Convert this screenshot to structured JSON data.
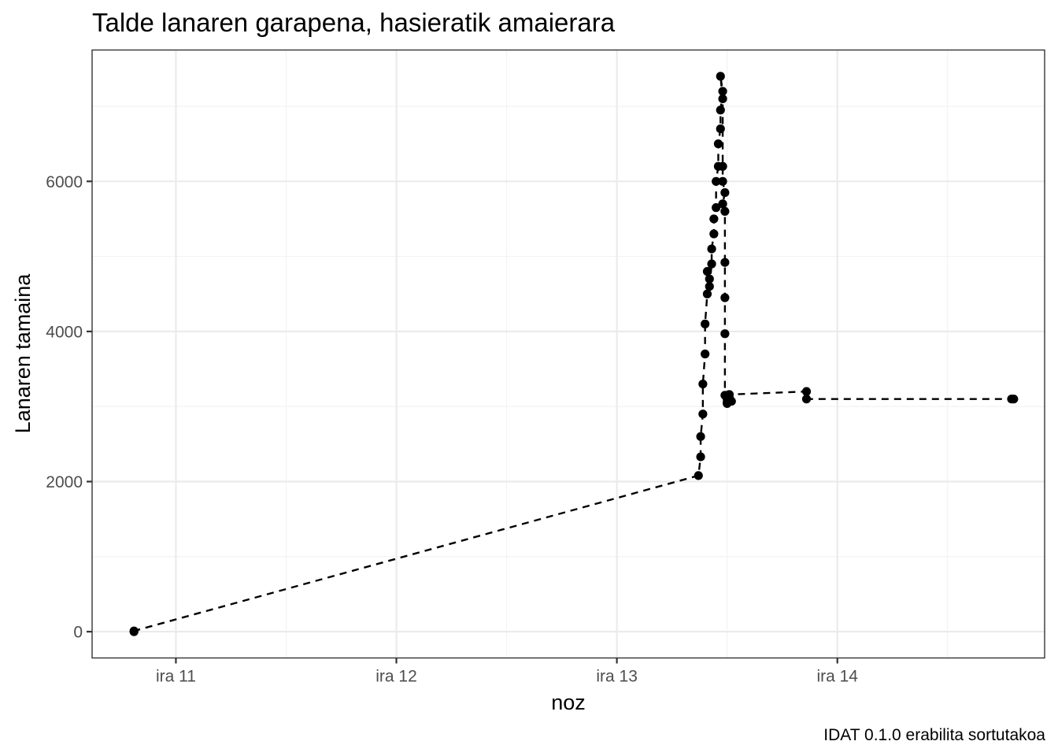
{
  "chart_data": {
    "type": "line",
    "title": "Talde lanaren garapena, hasieratik amaierara",
    "xlabel": "noz",
    "ylabel": "Lanaren tamaina",
    "caption": "IDAT 0.1.0 erabilita sortutakoa",
    "x_axis": {
      "unit": "days (day-of-month)",
      "range": [
        10.62,
        14.94
      ],
      "major_ticks": [
        11,
        12,
        13,
        14
      ],
      "tick_labels": [
        "ira 11",
        "ira 12",
        "ira 13",
        "ira 14"
      ],
      "minor_ticks": [
        11.5,
        12.5,
        13.5,
        14.5
      ]
    },
    "y_axis": {
      "range": [
        -350,
        7750
      ],
      "major_ticks": [
        0,
        2000,
        4000,
        6000
      ],
      "tick_labels": [
        "0",
        "2000",
        "4000",
        "6000"
      ],
      "minor_ticks": [
        1000,
        3000,
        5000,
        7000
      ]
    },
    "grid": true,
    "series": [
      {
        "line_style": "dashed",
        "marker": "circle",
        "color": "#000000",
        "x": [
          10.81,
          10.81,
          13.37,
          13.38,
          13.38,
          13.39,
          13.39,
          13.4,
          13.4,
          13.41,
          13.41,
          13.42,
          13.42,
          13.43,
          13.43,
          13.44,
          13.44,
          13.45,
          13.45,
          13.46,
          13.46,
          13.47,
          13.47,
          13.48,
          13.47,
          13.48,
          13.48,
          13.48,
          13.49,
          13.48,
          13.49,
          13.49,
          13.49,
          13.49,
          13.49,
          13.5,
          13.5,
          13.5,
          13.5,
          13.51,
          13.52,
          13.51,
          13.86,
          13.86,
          14.79,
          14.8
        ],
        "y": [
          0,
          10,
          2080,
          2330,
          2600,
          2900,
          3300,
          3700,
          4100,
          4500,
          4800,
          4700,
          4600,
          4900,
          5100,
          5300,
          5500,
          5650,
          6000,
          6200,
          6500,
          6700,
          6950,
          7200,
          7400,
          7100,
          6200,
          6000,
          5850,
          5700,
          5600,
          4920,
          4450,
          3970,
          3150,
          3040,
          3100,
          3150,
          3060,
          3120,
          3070,
          3160,
          3200,
          3100,
          3100,
          3100
        ]
      }
    ]
  }
}
